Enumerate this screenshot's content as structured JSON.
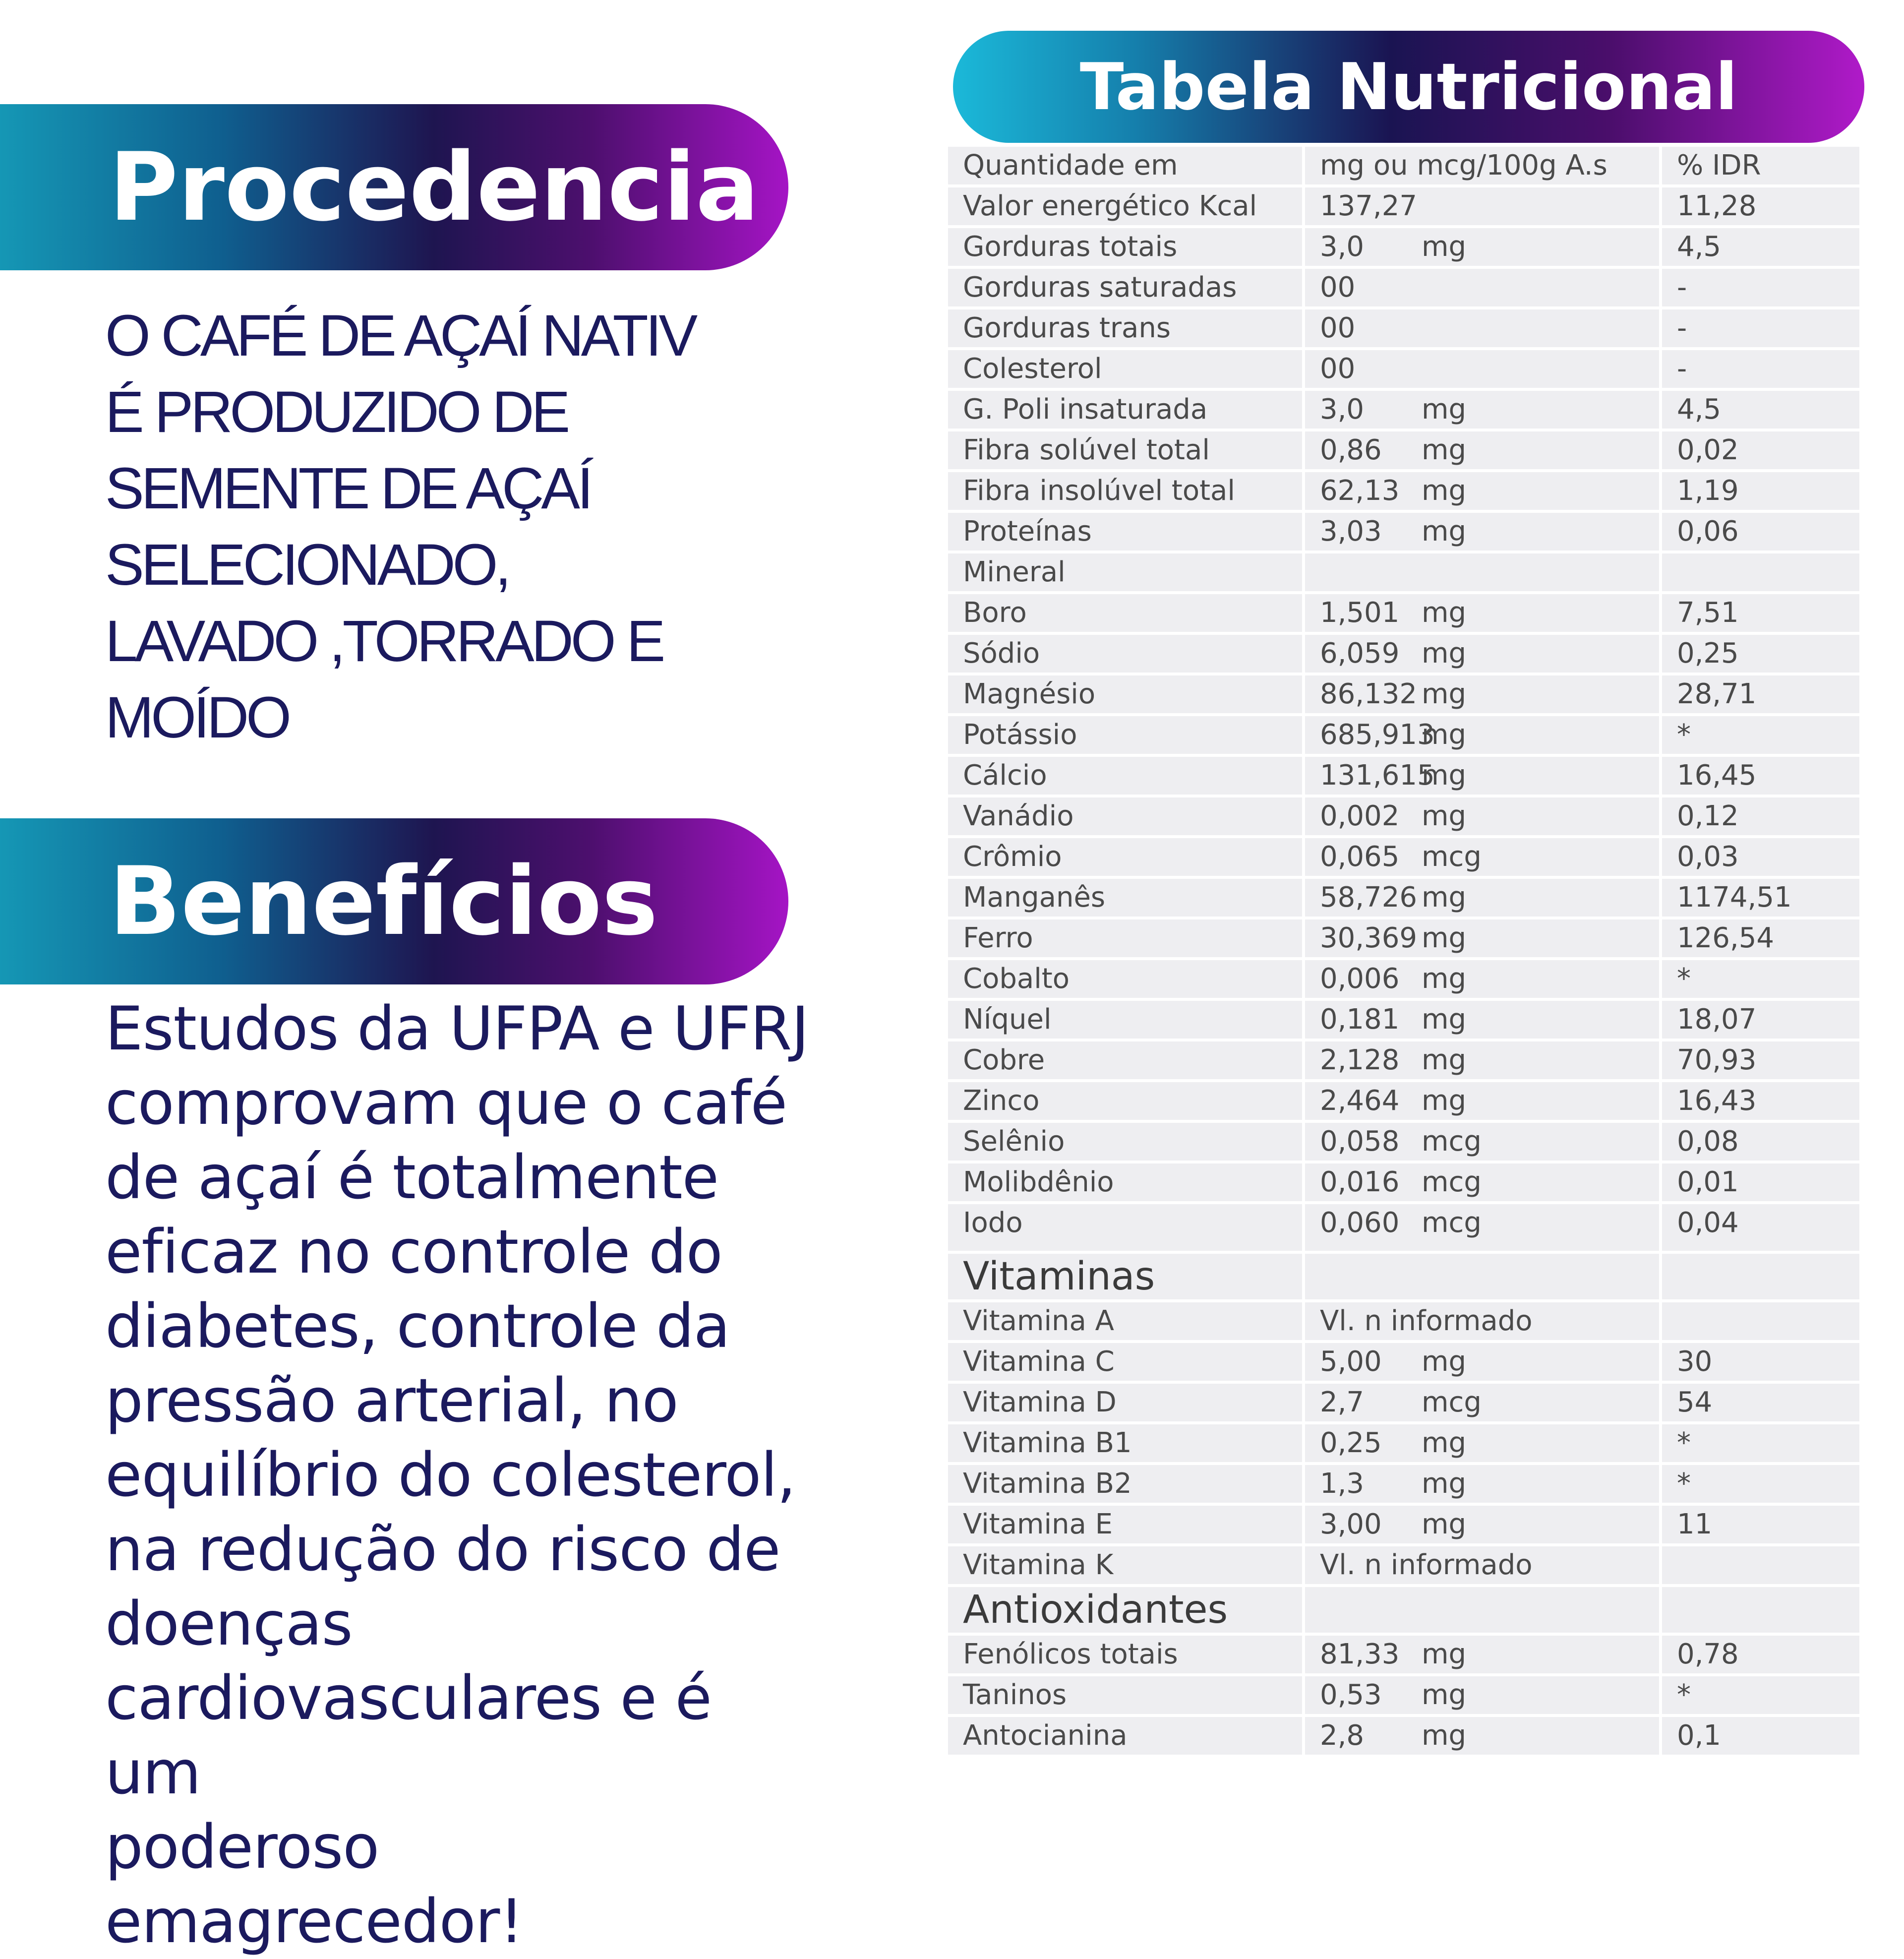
{
  "procedencia": {
    "title": "Procedencia",
    "text": "O CAFÉ DE AÇAÍ NATIV\nÉ PRODUZIDO DE\nSEMENTE DE AÇAÍ\nSELECIONADO,\nLAVADO ,TORRADO E\nMOÍDO"
  },
  "beneficios": {
    "title": "Benefícios",
    "text": "Estudos da UFPA e UFRJ\ncomprovam que o café\nde açaí é totalmente\neficaz no controle do\ndiabetes, controle da\npressão arterial, no\nequilíbrio do colesterol,\nna redução do risco de\ndoenças\ncardiovasculares e é um\npoderoso emagrecedor!"
  },
  "table": {
    "title": "Tabela Nutricional",
    "rows": [
      {
        "name": "Quantidade em",
        "value": "mg ou mcg/100g A.s",
        "unit": "",
        "idr": "% IDR"
      },
      {
        "name": "Valor energético Kcal",
        "value": "137,27",
        "unit": "",
        "idr": "11,28"
      },
      {
        "name": "Gorduras totais",
        "value": "3,0",
        "unit": "mg",
        "idr": "4,5"
      },
      {
        "name": "Gorduras saturadas",
        "value": "00",
        "unit": "",
        "idr": "-"
      },
      {
        "name": "Gorduras trans",
        "value": "00",
        "unit": "",
        "idr": "-"
      },
      {
        "name": "Colesterol",
        "value": "00",
        "unit": "",
        "idr": "-"
      },
      {
        "name": "G. Poli insaturada",
        "value": "3,0",
        "unit": "mg",
        "idr": "4,5"
      },
      {
        "name": "Fibra solúvel total",
        "value": "0,86",
        "unit": "mg",
        "idr": "0,02"
      },
      {
        "name": "Fibra insolúvel total",
        "value": "62,13",
        "unit": "mg",
        "idr": "1,19"
      },
      {
        "name": "Proteínas",
        "value": "3,03",
        "unit": "mg",
        "idr": "0,06"
      },
      {
        "name": "Mineral",
        "value": "",
        "unit": "",
        "idr": ""
      },
      {
        "name": "Boro",
        "value": "1,501",
        "unit": "mg",
        "idr": "7,51"
      },
      {
        "name": "Sódio",
        "value": "6,059",
        "unit": "mg",
        "idr": "0,25"
      },
      {
        "name": "Magnésio",
        "value": "86,132",
        "unit": "mg",
        "idr": "28,71"
      },
      {
        "name": "Potássio",
        "value": "685,913",
        "unit": "mg",
        "idr": "*"
      },
      {
        "name": "Cálcio",
        "value": "131,615",
        "unit": "mg",
        "idr": "16,45"
      },
      {
        "name": "Vanádio",
        "value": "0,002",
        "unit": "mg",
        "idr": "0,12"
      },
      {
        "name": "Crômio",
        "value": "0,065",
        "unit": "mcg",
        "idr": "0,03"
      },
      {
        "name": "Manganês",
        "value": "58,726",
        "unit": "mg",
        "idr": "1174,51"
      },
      {
        "name": "Ferro",
        "value": "30,369",
        "unit": "mg",
        "idr": "126,54"
      },
      {
        "name": "Cobalto",
        "value": "0,006",
        "unit": "mg",
        "idr": "*"
      },
      {
        "name": "Níquel",
        "value": "0,181",
        "unit": "mg",
        "idr": "18,07"
      },
      {
        "name": "Cobre",
        "value": "2,128",
        "unit": "mg",
        "idr": "70,93"
      },
      {
        "name": "Zinco",
        "value": "2,464",
        "unit": "mg",
        "idr": "16,43"
      },
      {
        "name": "Selênio",
        "value": "0,058",
        "unit": "mcg",
        "idr": "0,08"
      },
      {
        "name": "Molibdênio",
        "value": "0,016",
        "unit": "mcg",
        "idr": "0,01"
      },
      {
        "name": "Iodo",
        "value": "0,060",
        "unit": "mcg",
        "idr": "0,04"
      },
      {
        "name": "Vitaminas",
        "value": "",
        "unit": "",
        "idr": ""
      },
      {
        "name": "Vitamina A",
        "value": "Vl. n informado",
        "unit": "",
        "idr": ""
      },
      {
        "name": "Vitamina C",
        "value": "5,00",
        "unit": "mg",
        "idr": "30"
      },
      {
        "name": "Vitamina D",
        "value": "2,7",
        "unit": "mcg",
        "idr": "54"
      },
      {
        "name": "Vitamina B1",
        "value": "0,25",
        "unit": "mg",
        "idr": "*"
      },
      {
        "name": "Vitamina B2",
        "value": "1,3",
        "unit": "mg",
        "idr": "*"
      },
      {
        "name": "Vitamina E",
        "value": "3,00",
        "unit": "mg",
        "idr": "11"
      },
      {
        "name": "Vitamina K",
        "value": "Vl. n informado",
        "unit": "",
        "idr": ""
      },
      {
        "name": "Antioxidantes",
        "value": "",
        "unit": "",
        "idr": ""
      },
      {
        "name": "Fenólicos totais",
        "value": "81,33",
        "unit": "mg",
        "idr": "0,78"
      },
      {
        "name": "Taninos",
        "value": "0,53",
        "unit": "mg",
        "idr": "*"
      },
      {
        "name": "Antocianina",
        "value": "2,8",
        "unit": "mg",
        "idr": "0,1"
      }
    ]
  },
  "colors": {
    "text_navy": "#1b1a5e",
    "gradient_cyan": "#1597b5",
    "gradient_dark": "#1e1550",
    "gradient_magenta": "#a514c5",
    "table_cell": "#eeeef1"
  }
}
